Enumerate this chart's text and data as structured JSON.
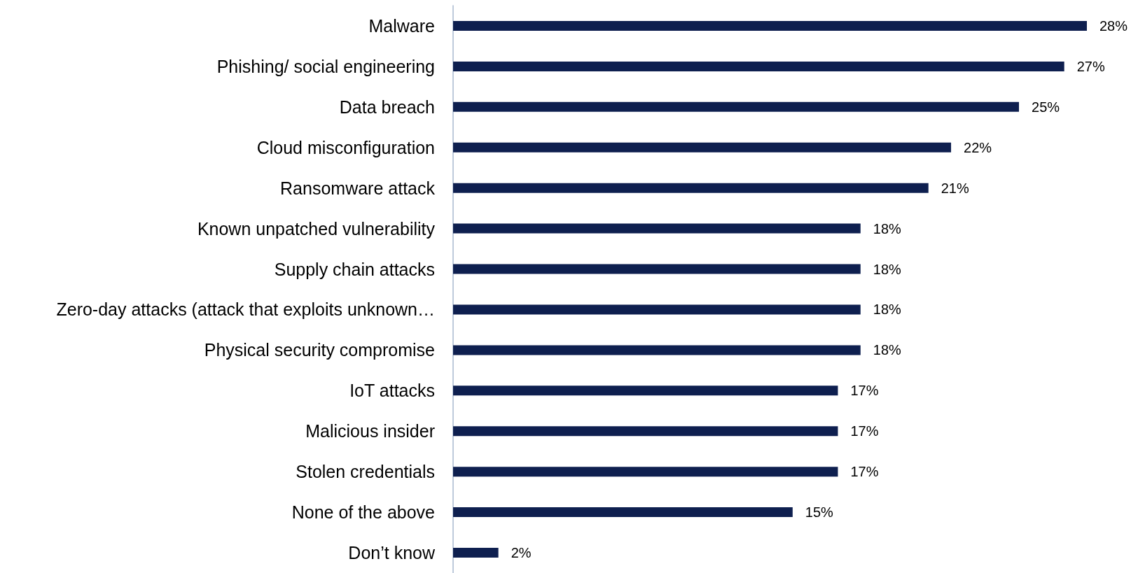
{
  "chart_data": {
    "type": "bar",
    "orientation": "horizontal",
    "categories": [
      "Malware",
      "Phishing/ social engineering",
      "Data breach",
      "Cloud misconfiguration",
      "Ransomware attack",
      "Known unpatched vulnerability",
      "Supply chain attacks",
      "Zero-day attacks (attack that exploits unknown…",
      "Physical security compromise",
      "IoT attacks",
      "Malicious insider",
      "Stolen credentials",
      "None of the above",
      "Don’t know"
    ],
    "values": [
      28,
      27,
      25,
      22,
      21,
      18,
      18,
      18,
      18,
      17,
      17,
      17,
      15,
      2
    ],
    "value_labels": [
      "28%",
      "27%",
      "25%",
      "22%",
      "21%",
      "18%",
      "18%",
      "18%",
      "18%",
      "17%",
      "17%",
      "17%",
      "15%",
      "2%"
    ],
    "color": "#0e1f4f",
    "grid": false,
    "tick_labels": "y"
  }
}
